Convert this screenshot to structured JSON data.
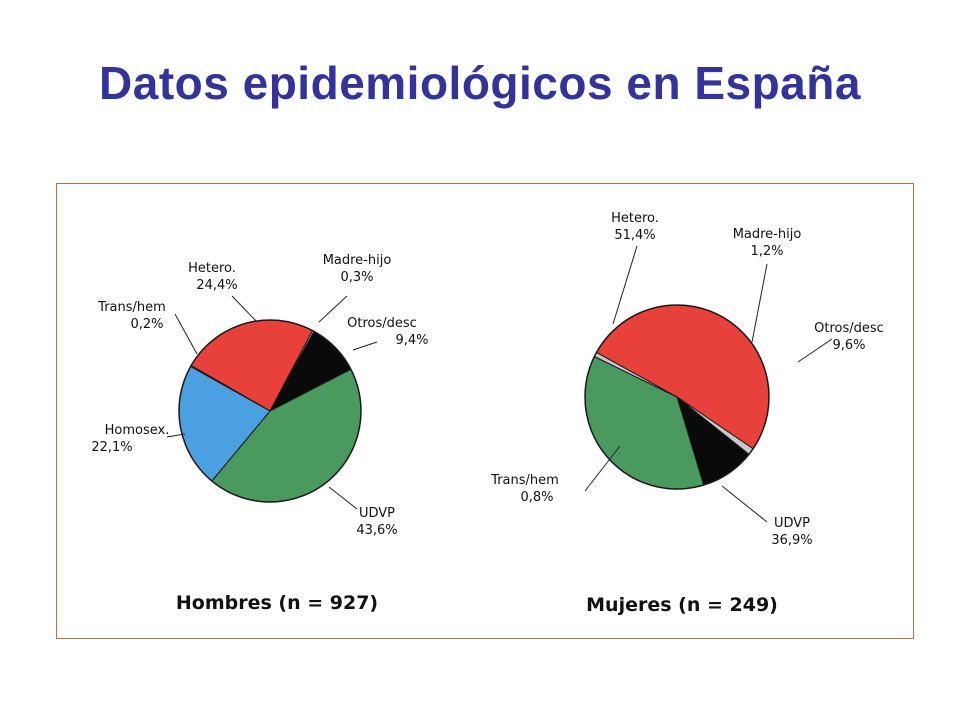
{
  "page": {
    "title": "Datos epidemiológicos en España"
  },
  "chart_data": [
    {
      "type": "pie",
      "title": "Hombres (n = 927)",
      "slices": [
        {
          "label": "Hetero.",
          "value": 24.4,
          "value_label": "24,4%",
          "color": "#e8403a"
        },
        {
          "label": "Madre-hijo",
          "value": 0.3,
          "value_label": "0,3%",
          "color": "#c8c8c8"
        },
        {
          "label": "Otros/desc",
          "value": 9.4,
          "value_label": "9,4%",
          "color": "#0a0a0a"
        },
        {
          "label": "UDVP",
          "value": 43.6,
          "value_label": "43,6%",
          "color": "#4a9a60"
        },
        {
          "label": "Homosex.",
          "value": 22.1,
          "value_label": "22,1%",
          "color": "#4aa0e0"
        },
        {
          "label": "Trans/hem",
          "value": 0.2,
          "value_label": "0,2%",
          "color": "#c8c8c8"
        }
      ]
    },
    {
      "type": "pie",
      "title": "Mujeres (n = 249)",
      "slices": [
        {
          "label": "Hetero.",
          "value": 51.4,
          "value_label": "51,4%",
          "color": "#e8403a"
        },
        {
          "label": "Madre-hijo",
          "value": 1.2,
          "value_label": "1,2%",
          "color": "#c8c8c8"
        },
        {
          "label": "Otros/desc",
          "value": 9.6,
          "value_label": "9,6%",
          "color": "#0a0a0a"
        },
        {
          "label": "UDVP",
          "value": 36.9,
          "value_label": "36,9%",
          "color": "#4a9a60"
        },
        {
          "label": "Trans/hem",
          "value": 0.8,
          "value_label": "0,8%",
          "color": "#c8c8c8"
        }
      ]
    }
  ]
}
